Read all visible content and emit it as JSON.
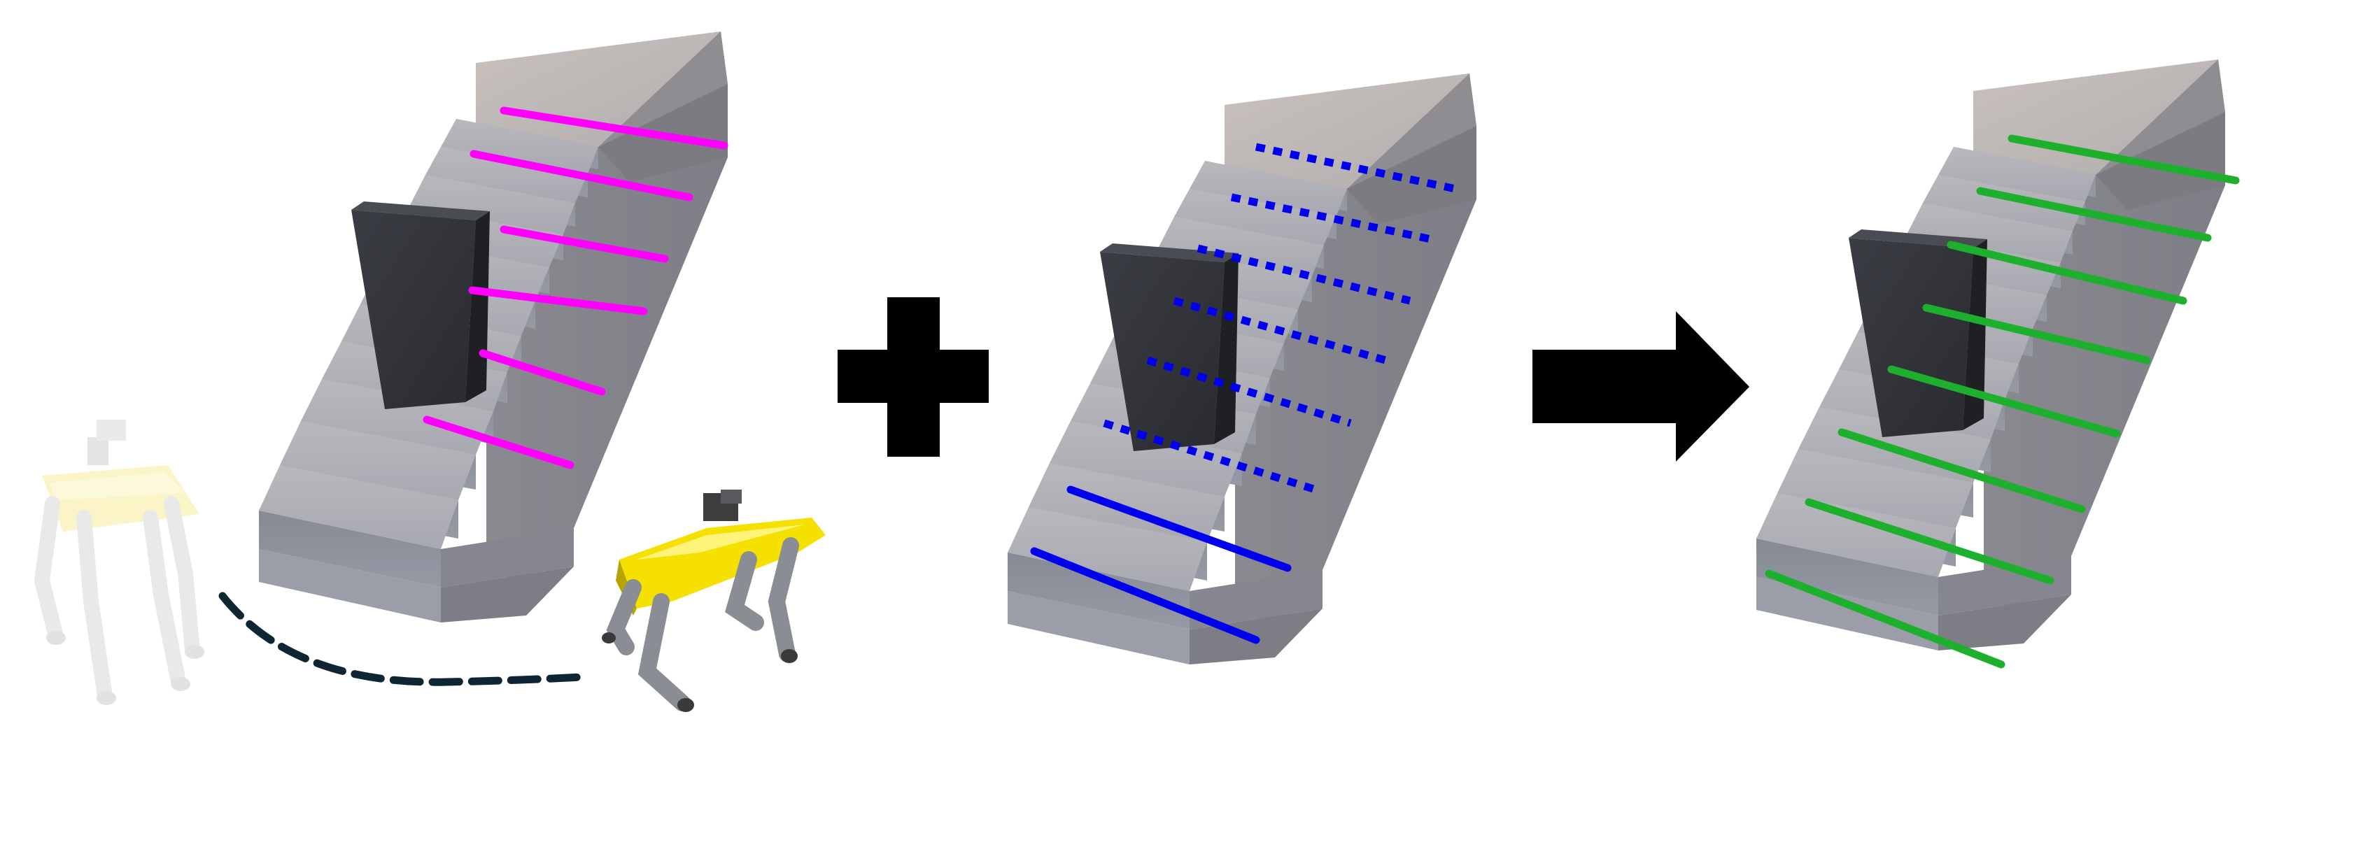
{
  "panels": [
    {
      "name": "observed-stairs",
      "edge_color": "#ff00ff",
      "edge_style": "solid",
      "edge_count": 6
    },
    {
      "name": "prior-stairs",
      "edge_color": "#0000ee",
      "edge_style": "solid-and-dotted",
      "edge_count": 8
    },
    {
      "name": "fused-stairs",
      "edge_color": "#1db02c",
      "edge_style": "solid",
      "edge_count": 8
    }
  ],
  "operators": [
    {
      "name": "plus-symbol",
      "color": "#000000"
    },
    {
      "name": "arrow-right-symbol",
      "color": "#000000"
    }
  ],
  "robots": [
    {
      "name": "robot-ghost",
      "color": "#f7ec9a"
    },
    {
      "name": "robot-dog",
      "color": "#f5e000"
    }
  ],
  "path": {
    "name": "robot-path-dashed",
    "color": "#0e2533"
  }
}
